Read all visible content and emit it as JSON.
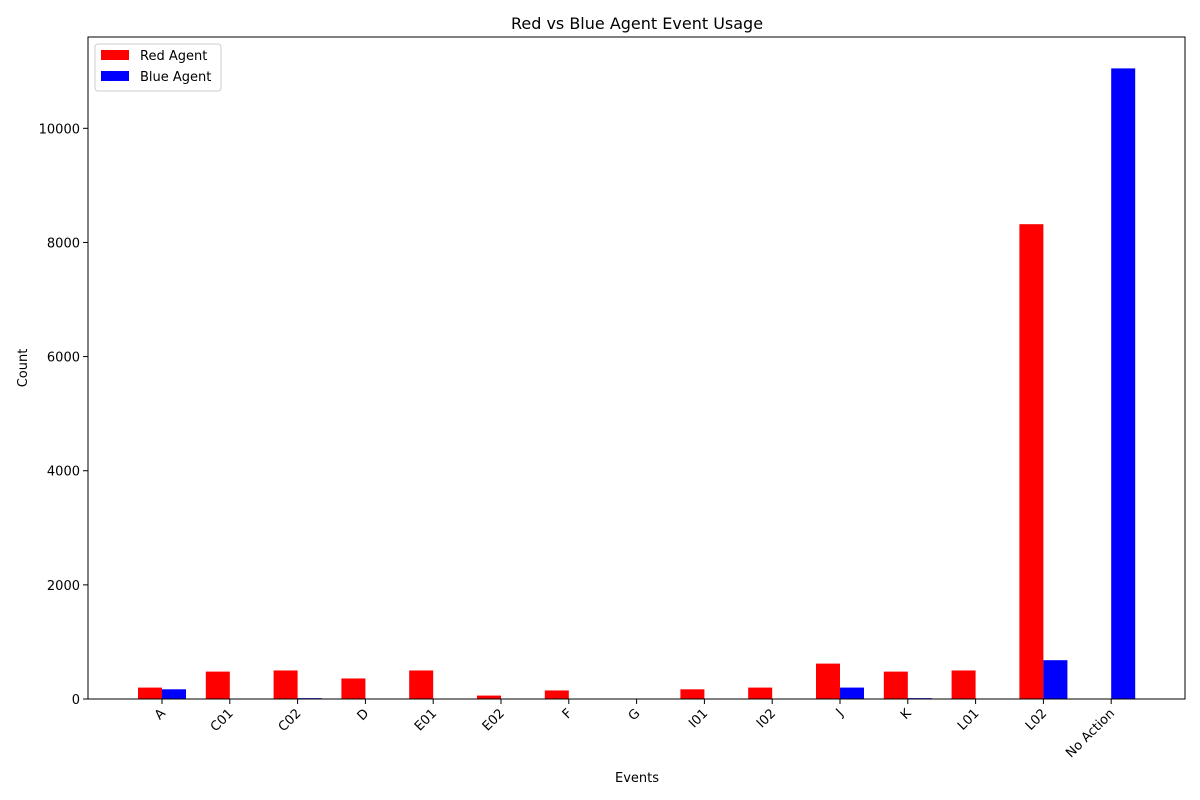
{
  "chart_data": {
    "type": "bar",
    "title": "Red vs Blue Agent Event Usage",
    "xlabel": "Events",
    "ylabel": "Count",
    "categories": [
      "A",
      "C01",
      "C02",
      "D",
      "E01",
      "E02",
      "F",
      "G",
      "I01",
      "I02",
      "J",
      "K",
      "L01",
      "L02",
      "No Action"
    ],
    "ylim": [
      0,
      11600
    ],
    "yticks": [
      0,
      2000,
      4000,
      6000,
      8000,
      10000
    ],
    "ytick_labels": [
      "0",
      "2000",
      "4000",
      "6000",
      "8000",
      "10000"
    ],
    "legend_position": "upper-left",
    "grid": false,
    "series": [
      {
        "name": "Red Agent",
        "color": "#ff0000",
        "values": [
          200,
          480,
          500,
          360,
          500,
          60,
          150,
          0,
          170,
          200,
          620,
          480,
          500,
          8320,
          0
        ]
      },
      {
        "name": "Blue Agent",
        "color": "#0000ff",
        "values": [
          170,
          0,
          15,
          0,
          0,
          0,
          0,
          0,
          0,
          0,
          200,
          15,
          0,
          680,
          11050
        ]
      }
    ]
  }
}
